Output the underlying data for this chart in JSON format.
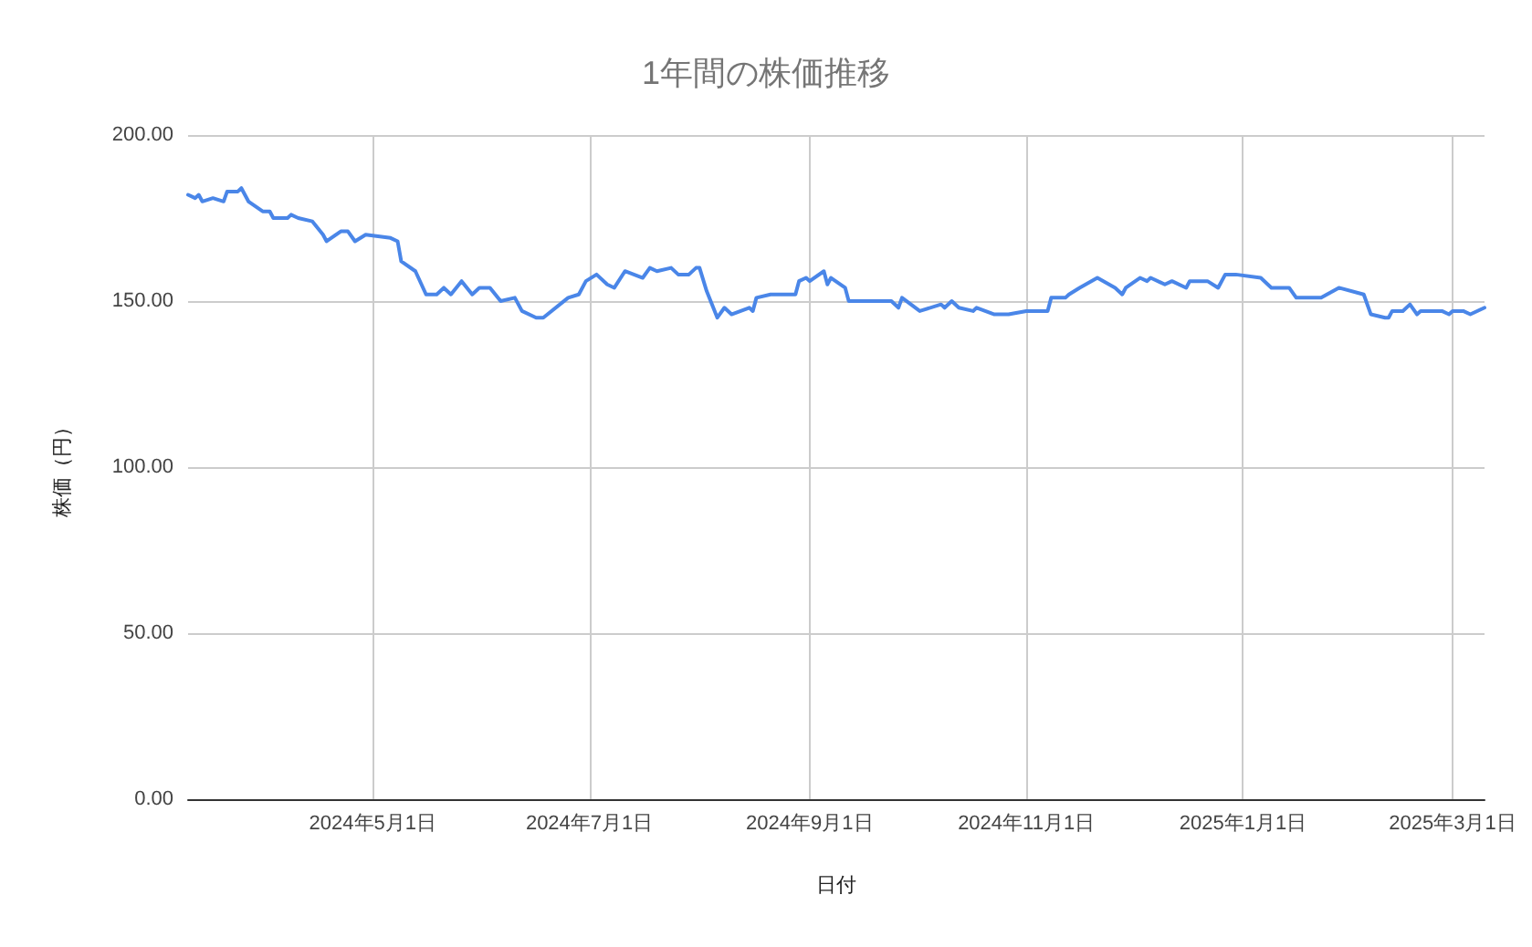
{
  "chart_data": {
    "type": "line",
    "title": "1年間の株価推移",
    "xlabel": "日付",
    "ylabel": "株価（円）",
    "xlim": [
      "2024-03-10",
      "2025-03-10"
    ],
    "xticks": [
      {
        "value": "2024-05-01",
        "label": "2024年5月1日"
      },
      {
        "value": "2024-07-01",
        "label": "2024年7月1日"
      },
      {
        "value": "2024-09-01",
        "label": "2024年9月1日"
      },
      {
        "value": "2024-11-01",
        "label": "2024年11月1日"
      },
      {
        "value": "2025-01-01",
        "label": "2025年1月1日"
      },
      {
        "value": "2025-03-01",
        "label": "2025年3月1日"
      }
    ],
    "ylim": [
      0,
      200
    ],
    "yticks": [
      {
        "value": 0,
        "label": "0.00"
      },
      {
        "value": 50,
        "label": "50.00"
      },
      {
        "value": 100,
        "label": "100.00"
      },
      {
        "value": 150,
        "label": "150.00"
      },
      {
        "value": 200,
        "label": "200.00"
      }
    ],
    "grid": true,
    "marker": "none",
    "line_style": "solid",
    "series": [
      {
        "color": "#4a86e8",
        "x": [
          "2024-03-10",
          "2024-03-12",
          "2024-03-13",
          "2024-03-14",
          "2024-03-17",
          "2024-03-20",
          "2024-03-21",
          "2024-03-24",
          "2024-03-25",
          "2024-03-27",
          "2024-03-31",
          "2024-04-02",
          "2024-04-03",
          "2024-04-07",
          "2024-04-08",
          "2024-04-10",
          "2024-04-14",
          "2024-04-17",
          "2024-04-18",
          "2024-04-22",
          "2024-04-24",
          "2024-04-26",
          "2024-04-29",
          "2024-05-06",
          "2024-05-08",
          "2024-05-09",
          "2024-05-13",
          "2024-05-16",
          "2024-05-19",
          "2024-05-21",
          "2024-05-23",
          "2024-05-26",
          "2024-05-29",
          "2024-05-31",
          "2024-06-03",
          "2024-06-06",
          "2024-06-10",
          "2024-06-12",
          "2024-06-16",
          "2024-06-18",
          "2024-06-25",
          "2024-06-28",
          "2024-06-30",
          "2024-07-03",
          "2024-07-06",
          "2024-07-08",
          "2024-07-11",
          "2024-07-16",
          "2024-07-18",
          "2024-07-20",
          "2024-07-24",
          "2024-07-26",
          "2024-07-29",
          "2024-07-31",
          "2024-08-01",
          "2024-08-03",
          "2024-08-06",
          "2024-08-08",
          "2024-08-10",
          "2024-08-15",
          "2024-08-16",
          "2024-08-17",
          "2024-08-21",
          "2024-08-28",
          "2024-08-29",
          "2024-08-31",
          "2024-09-01",
          "2024-09-05",
          "2024-09-06",
          "2024-09-07",
          "2024-09-11",
          "2024-09-12",
          "2024-09-14",
          "2024-09-21",
          "2024-09-24",
          "2024-09-26",
          "2024-09-27",
          "2024-10-02",
          "2024-10-08",
          "2024-10-09",
          "2024-10-11",
          "2024-10-13",
          "2024-10-17",
          "2024-10-18",
          "2024-10-23",
          "2024-10-27",
          "2024-11-01",
          "2024-11-07",
          "2024-11-08",
          "2024-11-12",
          "2024-11-13",
          "2024-11-16",
          "2024-11-21",
          "2024-11-26",
          "2024-11-28",
          "2024-11-29",
          "2024-12-03",
          "2024-12-05",
          "2024-12-06",
          "2024-12-10",
          "2024-12-12",
          "2024-12-16",
          "2024-12-17",
          "2024-12-20",
          "2024-12-22",
          "2024-12-25",
          "2024-12-27",
          "2024-12-30",
          "2025-01-06",
          "2025-01-09",
          "2025-01-14",
          "2025-01-16",
          "2025-01-18",
          "2025-01-20",
          "2025-01-23",
          "2025-01-28",
          "2025-02-04",
          "2025-02-06",
          "2025-02-10",
          "2025-02-11",
          "2025-02-12",
          "2025-02-15",
          "2025-02-17",
          "2025-02-19",
          "2025-02-20",
          "2025-02-26",
          "2025-02-28",
          "2025-03-01",
          "2025-03-04",
          "2025-03-06",
          "2025-03-10"
        ],
        "values": [
          182,
          181,
          182,
          180,
          181,
          180,
          183,
          183,
          184,
          180,
          177,
          177,
          175,
          175,
          176,
          175,
          174,
          170,
          168,
          171,
          171,
          168,
          170,
          169,
          168,
          162,
          159,
          152,
          152,
          154,
          152,
          156,
          152,
          154,
          154,
          150,
          151,
          147,
          145,
          145,
          151,
          152,
          156,
          158,
          155,
          154,
          159,
          157,
          160,
          159,
          160,
          158,
          158,
          160,
          160,
          153,
          145,
          148,
          146,
          148,
          147,
          151,
          152,
          152,
          156,
          157,
          156,
          159,
          155,
          157,
          154,
          150,
          150,
          150,
          150,
          148,
          151,
          147,
          149,
          148,
          150,
          148,
          147,
          148,
          146,
          146,
          147,
          147,
          151,
          151,
          152,
          154,
          157,
          154,
          152,
          154,
          157,
          156,
          157,
          155,
          156,
          154,
          156,
          156,
          156,
          154,
          158,
          158,
          157,
          154,
          154,
          151,
          151,
          151,
          151,
          154,
          152,
          146,
          145,
          145,
          147,
          147,
          149,
          146,
          147,
          147,
          146,
          147,
          147,
          146,
          148
        ]
      }
    ]
  }
}
